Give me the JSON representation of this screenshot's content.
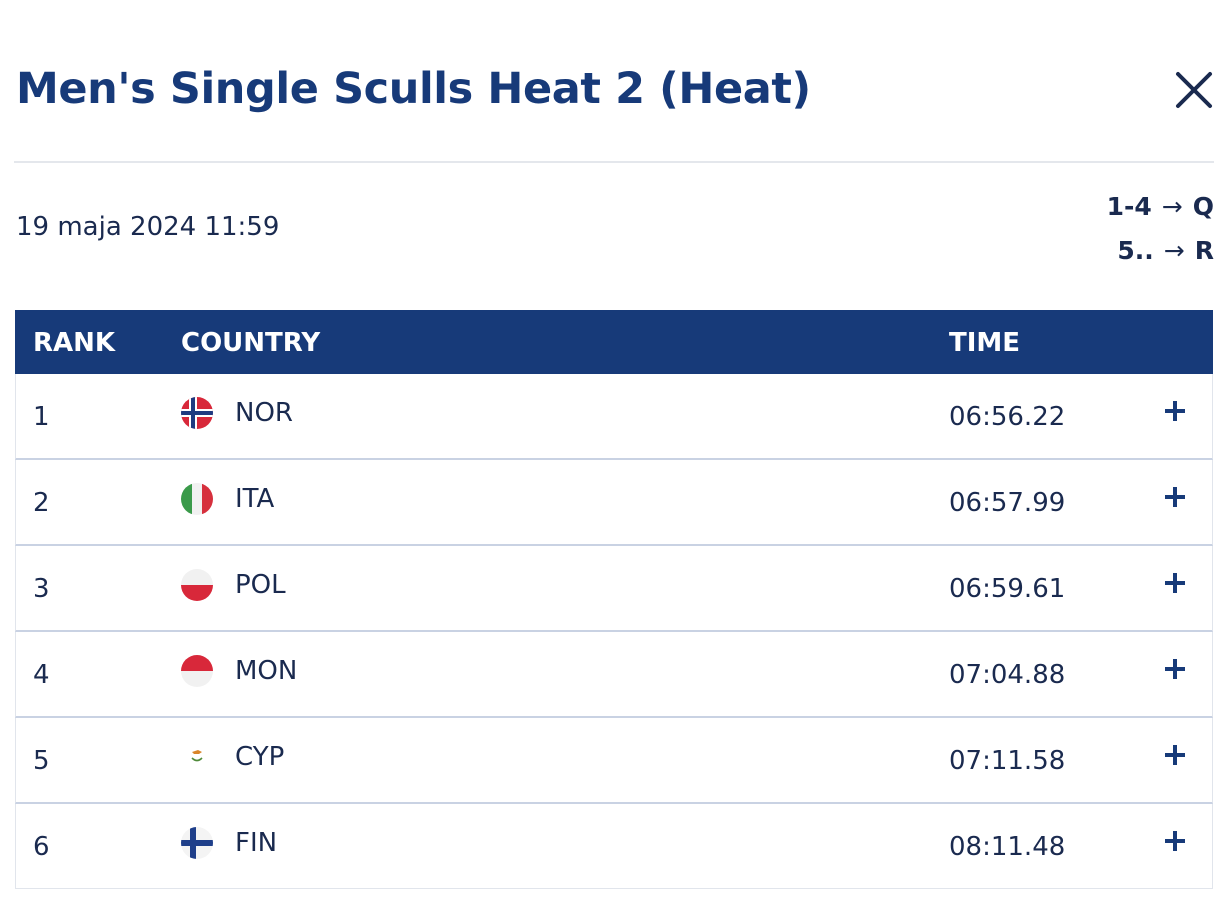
{
  "modal": {
    "title": "Men's Single Sculls Heat 2 (Heat)",
    "close_icon": "close-icon",
    "date": "19 maja 2024 11:59"
  },
  "progression": [
    {
      "range": "1-4",
      "arrow": "→",
      "result": "Q"
    },
    {
      "range": "5..",
      "arrow": "→",
      "result": "R"
    }
  ],
  "table": {
    "headers": {
      "rank": "RANK",
      "country": "COUNTRY",
      "time": "TIME"
    },
    "rows": [
      {
        "rank": "1",
        "flag": "flag-norway-icon",
        "country": "NOR",
        "time": "06:56.22",
        "expand_icon": "plus-icon"
      },
      {
        "rank": "2",
        "flag": "flag-italy-icon",
        "country": "ITA",
        "time": "06:57.99",
        "expand_icon": "plus-icon"
      },
      {
        "rank": "3",
        "flag": "flag-poland-icon",
        "country": "POL",
        "time": "06:59.61",
        "expand_icon": "plus-icon"
      },
      {
        "rank": "4",
        "flag": "flag-monaco-icon",
        "country": "MON",
        "time": "07:04.88",
        "expand_icon": "plus-icon"
      },
      {
        "rank": "5",
        "flag": "flag-cyprus-icon",
        "country": "CYP",
        "time": "07:11.58",
        "expand_icon": "plus-icon"
      },
      {
        "rank": "6",
        "flag": "flag-finland-icon",
        "country": "FIN",
        "time": "08:11.48",
        "expand_icon": "plus-icon"
      }
    ]
  },
  "colors": {
    "brand_navy": "#173a79",
    "text": "#1a2a4f",
    "row_border": "#c9d2e3",
    "divider": "#e4e7ec"
  }
}
